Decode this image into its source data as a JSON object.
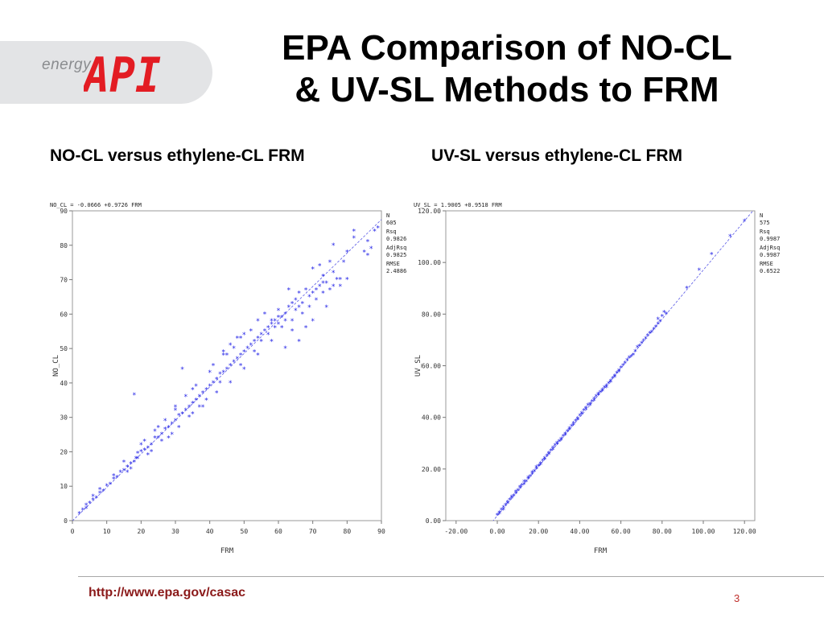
{
  "logo": {
    "wordmark": "energy",
    "brand_text": "API",
    "brand_color": "#e31c23"
  },
  "slide": {
    "title_line1": "EPA Comparison of NO-CL",
    "title_line2": "& UV-SL Methods to FRM",
    "subtitle_left": "NO-CL versus ethylene-CL FRM",
    "subtitle_right": "UV-SL versus ethylene-CL FRM",
    "footer_url": "http://www.epa.gov/casac",
    "page_number": "3"
  },
  "chart_data": [
    {
      "type": "scatter",
      "equation": "NO_CL = -0.0666 +0.9726 FRM",
      "xlabel": "FRM",
      "ylabel": "NO_CL",
      "xlim": [
        0,
        90
      ],
      "ylim": [
        0,
        90
      ],
      "x_ticks": [
        "0",
        "10",
        "20",
        "30",
        "40",
        "50",
        "60",
        "70",
        "80",
        "90"
      ],
      "y_ticks": [
        "0",
        "10",
        "20",
        "30",
        "40",
        "50",
        "60",
        "70",
        "80",
        "90"
      ],
      "fit": {
        "intercept": -0.0666,
        "slope": 0.9726
      },
      "stats": [
        "N",
        "605",
        "Rsq",
        "0.9826",
        "AdjRsq",
        "0.9825",
        "RMSE",
        "2.4886"
      ],
      "point_color": "#1f1fe6",
      "points": [
        [
          2,
          2
        ],
        [
          3,
          3
        ],
        [
          4,
          3.5
        ],
        [
          5,
          5
        ],
        [
          6,
          6
        ],
        [
          7,
          6.5
        ],
        [
          8,
          8
        ],
        [
          9,
          8.5
        ],
        [
          10,
          10
        ],
        [
          11,
          10.5
        ],
        [
          12,
          12
        ],
        [
          13,
          12.5
        ],
        [
          14,
          14
        ],
        [
          15,
          14.5
        ],
        [
          16,
          15.5
        ],
        [
          17,
          16.5
        ],
        [
          18,
          17
        ],
        [
          18.5,
          18
        ],
        [
          19,
          19.5
        ],
        [
          20,
          20
        ],
        [
          21,
          20.5
        ],
        [
          22,
          21
        ],
        [
          23,
          22
        ],
        [
          24,
          24
        ],
        [
          25,
          24
        ],
        [
          26,
          25
        ],
        [
          27,
          26.5
        ],
        [
          28,
          27
        ],
        [
          29,
          28
        ],
        [
          30,
          29
        ],
        [
          31,
          30.5
        ],
        [
          32,
          31
        ],
        [
          33,
          32
        ],
        [
          34,
          33
        ],
        [
          35,
          34
        ],
        [
          36,
          35
        ],
        [
          37,
          36
        ],
        [
          38,
          37
        ],
        [
          39,
          38
        ],
        [
          40,
          39
        ],
        [
          41,
          40
        ],
        [
          42,
          41
        ],
        [
          43,
          42.5
        ],
        [
          44,
          43
        ],
        [
          45,
          44
        ],
        [
          46,
          45
        ],
        [
          47,
          46
        ],
        [
          48,
          47
        ],
        [
          49,
          48
        ],
        [
          50,
          49
        ],
        [
          51,
          50
        ],
        [
          52,
          51
        ],
        [
          53,
          52
        ],
        [
          54,
          53
        ],
        [
          55,
          54
        ],
        [
          56,
          55
        ],
        [
          57,
          56
        ],
        [
          58,
          57
        ],
        [
          59,
          58
        ],
        [
          60,
          59
        ],
        [
          18,
          36.5
        ],
        [
          32,
          44
        ],
        [
          15,
          17
        ],
        [
          20,
          22
        ],
        [
          25,
          27
        ],
        [
          30,
          33
        ],
        [
          35,
          38
        ],
        [
          40,
          43
        ],
        [
          45,
          48
        ],
        [
          50,
          54
        ],
        [
          16,
          14
        ],
        [
          22,
          19
        ],
        [
          28,
          24
        ],
        [
          34,
          30
        ],
        [
          38,
          33
        ],
        [
          42,
          37
        ],
        [
          46,
          40
        ],
        [
          50,
          44
        ],
        [
          54,
          48
        ],
        [
          58,
          52
        ],
        [
          41,
          45
        ],
        [
          44,
          48
        ],
        [
          47,
          50
        ],
        [
          49,
          53
        ],
        [
          52,
          55
        ],
        [
          54,
          58
        ],
        [
          56,
          60
        ],
        [
          58,
          58
        ],
        [
          60,
          61
        ],
        [
          59,
          56
        ],
        [
          61,
          56
        ],
        [
          62,
          60
        ],
        [
          63,
          62
        ],
        [
          64,
          58
        ],
        [
          65,
          64
        ],
        [
          66,
          66
        ],
        [
          67,
          60
        ],
        [
          68,
          67
        ],
        [
          69,
          62
        ],
        [
          70,
          66
        ],
        [
          71,
          64
        ],
        [
          72,
          68
        ],
        [
          73,
          66
        ],
        [
          74,
          69
        ],
        [
          75,
          67
        ],
        [
          76,
          68
        ],
        [
          77,
          70
        ],
        [
          78,
          70
        ],
        [
          72,
          74
        ],
        [
          73,
          71
        ],
        [
          66,
          52
        ],
        [
          62,
          50
        ],
        [
          64,
          55
        ],
        [
          68,
          56
        ],
        [
          70,
          58
        ],
        [
          74,
          62
        ],
        [
          80,
          70
        ],
        [
          76,
          72
        ],
        [
          78,
          68
        ],
        [
          63,
          67
        ],
        [
          75,
          75
        ],
        [
          80,
          78
        ],
        [
          82,
          84
        ],
        [
          76,
          80
        ],
        [
          85,
          78
        ],
        [
          86,
          77
        ],
        [
          87,
          79
        ],
        [
          88,
          84
        ],
        [
          89,
          85
        ],
        [
          79,
          75
        ],
        [
          86,
          81
        ],
        [
          82,
          82
        ],
        [
          70,
          73
        ],
        [
          48,
          53
        ],
        [
          46,
          51
        ],
        [
          44,
          49
        ],
        [
          36,
          39
        ],
        [
          33,
          36
        ],
        [
          30,
          32
        ],
        [
          27,
          29
        ],
        [
          24,
          26
        ],
        [
          21,
          23
        ],
        [
          12,
          13
        ],
        [
          8,
          9
        ],
        [
          6,
          7
        ],
        [
          4,
          4.5
        ],
        [
          55,
          52
        ],
        [
          57,
          54
        ],
        [
          53,
          49
        ],
        [
          49,
          45
        ],
        [
          43,
          40
        ],
        [
          39,
          35
        ],
        [
          37,
          33
        ],
        [
          35,
          31
        ],
        [
          31,
          27
        ],
        [
          29,
          25
        ],
        [
          26,
          23
        ],
        [
          23,
          20
        ],
        [
          19,
          18
        ],
        [
          17,
          15
        ],
        [
          60,
          57
        ],
        [
          62,
          58
        ],
        [
          65,
          61
        ],
        [
          67,
          63
        ],
        [
          69,
          65
        ],
        [
          71,
          67
        ],
        [
          73,
          69
        ],
        [
          64,
          63
        ],
        [
          66,
          62
        ],
        [
          61,
          59
        ]
      ]
    },
    {
      "type": "scatter",
      "equation": "UV_SL = 1.9005 +0.9518 FRM",
      "xlabel": "FRM",
      "ylabel": "UV_SL",
      "xlim": [
        -25,
        125
      ],
      "ylim": [
        0,
        120
      ],
      "x_ticks": [
        "-20.00",
        "0.00",
        "20.00",
        "40.00",
        "60.00",
        "80.00",
        "100.00",
        "120.00"
      ],
      "x_tick_values": [
        -20,
        0,
        20,
        40,
        60,
        80,
        100,
        120
      ],
      "y_ticks": [
        "0.00",
        "20.00",
        "40.00",
        "60.00",
        "80.00",
        "100.00",
        "120.00"
      ],
      "y_tick_values": [
        0,
        20,
        40,
        60,
        80,
        100,
        120
      ],
      "fit": {
        "intercept": 1.9005,
        "slope": 0.9518
      },
      "stats": [
        "N",
        "575",
        "Rsq",
        "0.9987",
        "AdjRsq",
        "0.9987",
        "RMSE",
        "0.6522"
      ],
      "point_color": "#1f1fe6",
      "points": [
        [
          0,
          2
        ],
        [
          1,
          3
        ],
        [
          2,
          4
        ],
        [
          3,
          5
        ],
        [
          4,
          6
        ],
        [
          5,
          7
        ],
        [
          6,
          8
        ],
        [
          7,
          8.5
        ],
        [
          8,
          9.5
        ],
        [
          9,
          10.5
        ],
        [
          10,
          11.5
        ],
        [
          11,
          12.5
        ],
        [
          12,
          13.5
        ],
        [
          13,
          14
        ],
        [
          14,
          15
        ],
        [
          15,
          16
        ],
        [
          16,
          17
        ],
        [
          17,
          18
        ],
        [
          18,
          19
        ],
        [
          19,
          20
        ],
        [
          20,
          21
        ],
        [
          21,
          22
        ],
        [
          22,
          23
        ],
        [
          23,
          24
        ],
        [
          24,
          25
        ],
        [
          25,
          26
        ],
        [
          26,
          27
        ],
        [
          27,
          28
        ],
        [
          28,
          29
        ],
        [
          29,
          30
        ],
        [
          30,
          30.5
        ],
        [
          31,
          31.5
        ],
        [
          32,
          32.5
        ],
        [
          33,
          33.5
        ],
        [
          34,
          34.5
        ],
        [
          35,
          35.5
        ],
        [
          36,
          36.5
        ],
        [
          37,
          37.5
        ],
        [
          38,
          38.5
        ],
        [
          39,
          39.5
        ],
        [
          40,
          40.5
        ],
        [
          41,
          41.5
        ],
        [
          42,
          42.5
        ],
        [
          43,
          43.5
        ],
        [
          44,
          44.5
        ],
        [
          45,
          45
        ],
        [
          46,
          46
        ],
        [
          47,
          47
        ],
        [
          48,
          48
        ],
        [
          49,
          49
        ],
        [
          50,
          49.5
        ],
        [
          51,
          50.5
        ],
        [
          52,
          51.5
        ],
        [
          53,
          52
        ],
        [
          54,
          53
        ],
        [
          55,
          54
        ],
        [
          56,
          55
        ],
        [
          57,
          56
        ],
        [
          58,
          57
        ],
        [
          59,
          58
        ],
        [
          60,
          59
        ],
        [
          62,
          61
        ],
        [
          64,
          63
        ],
        [
          66,
          64
        ],
        [
          68,
          67
        ],
        [
          70,
          68.5
        ],
        [
          72,
          70.5
        ],
        [
          74,
          72.5
        ],
        [
          76,
          74
        ],
        [
          78,
          76
        ],
        [
          80,
          79
        ],
        [
          81,
          80.5
        ],
        [
          82,
          80
        ],
        [
          78,
          78
        ],
        [
          92,
          90
        ],
        [
          98,
          97
        ],
        [
          104,
          103
        ],
        [
          113,
          110
        ],
        [
          120,
          116
        ],
        [
          126,
          121
        ],
        [
          1,
          2.5
        ],
        [
          3,
          4
        ],
        [
          5,
          6.5
        ],
        [
          7,
          9
        ],
        [
          9,
          11
        ],
        [
          11,
          13
        ],
        [
          13,
          15
        ],
        [
          15,
          16.5
        ],
        [
          17,
          18.5
        ],
        [
          19,
          20.5
        ],
        [
          21,
          21.5
        ],
        [
          23,
          23.5
        ],
        [
          25,
          25.5
        ],
        [
          27,
          27.5
        ],
        [
          29,
          29.5
        ],
        [
          31,
          31
        ],
        [
          33,
          33
        ],
        [
          35,
          35
        ],
        [
          37,
          37
        ],
        [
          39,
          39
        ],
        [
          41,
          41
        ],
        [
          43,
          43
        ],
        [
          45,
          44.5
        ],
        [
          47,
          46.5
        ],
        [
          49,
          48.5
        ],
        [
          51,
          50
        ],
        [
          53,
          51.5
        ],
        [
          55,
          53.5
        ],
        [
          57,
          55.5
        ],
        [
          59,
          57.5
        ],
        [
          61,
          60
        ],
        [
          63,
          62
        ],
        [
          65,
          63.5
        ],
        [
          67,
          65.5
        ],
        [
          69,
          67.5
        ],
        [
          71,
          69.5
        ],
        [
          73,
          71.5
        ],
        [
          75,
          73
        ],
        [
          77,
          75
        ],
        [
          79,
          77
        ]
      ]
    }
  ]
}
